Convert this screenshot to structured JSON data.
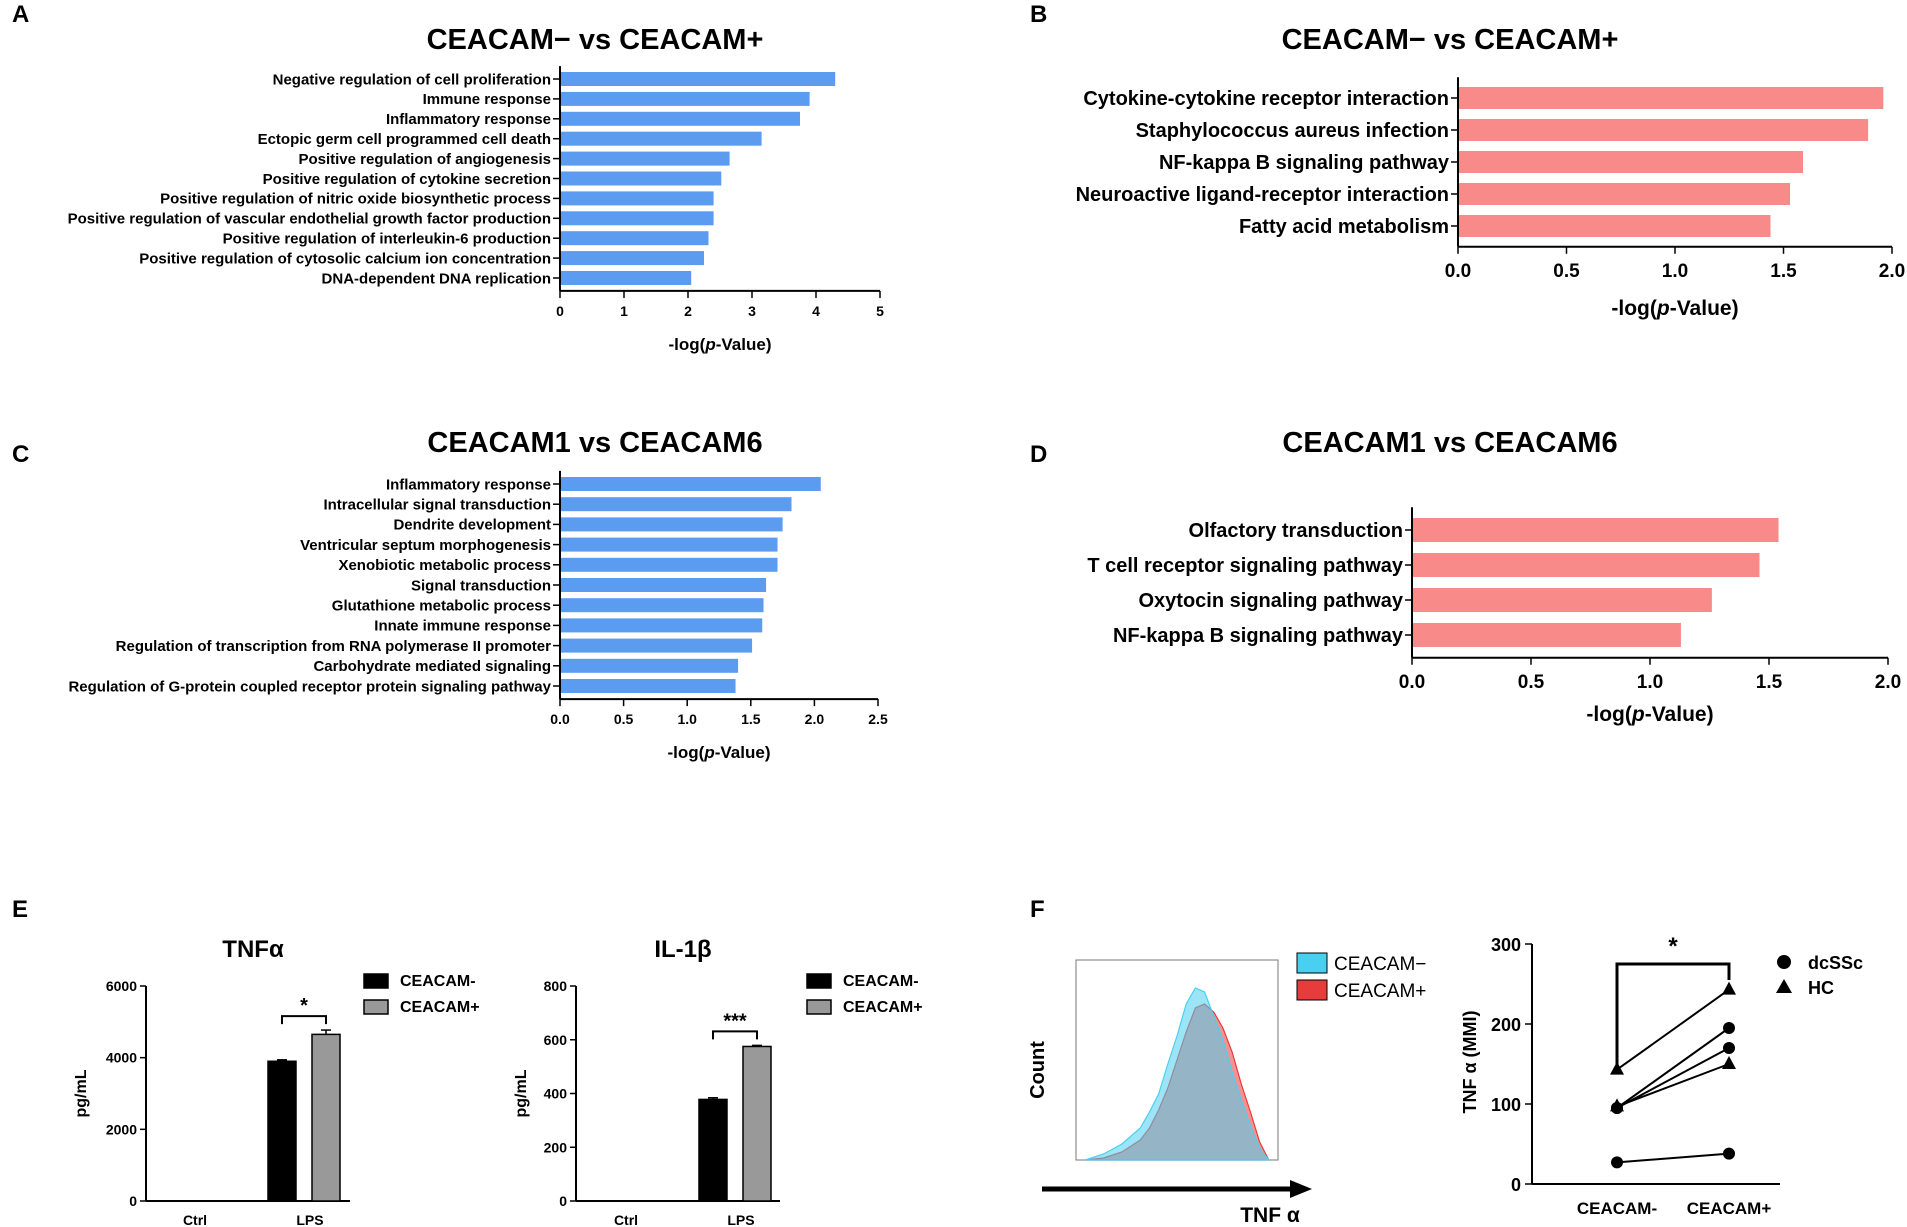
{
  "colors": {
    "blue": "#5B9BF0",
    "salmon": "#F88A8A",
    "black": "#000000",
    "gray": "#999999",
    "cyan": "#49D0F0",
    "red": "#E83B3B",
    "overlap": "#C09AA6"
  },
  "panels": {
    "A": "A",
    "B": "B",
    "C": "C",
    "D": "D",
    "E": "E",
    "F": "F"
  },
  "chart_data": [
    {
      "id": "A",
      "type": "bar",
      "orientation": "horizontal",
      "title": "CEACAM− vs CEACAM+",
      "xlabel_pre": "-log(",
      "xlabel_it": "p",
      "xlabel_post": "-Value)",
      "xlim": [
        0,
        5
      ],
      "xticks": [
        "0",
        "1",
        "2",
        "3",
        "4",
        "5"
      ],
      "categories": [
        "Negative regulation of cell proliferation",
        "Immune response",
        "Inflammatory response",
        "Ectopic germ cell programmed cell death",
        "Positive regulation of angiogenesis",
        "Positive regulation of cytokine secretion",
        "Positive regulation of nitric oxide biosynthetic process",
        "Positive regulation of vascular endothelial growth factor production",
        "Positive regulation of interleukin-6 production",
        "Positive regulation of cytosolic calcium ion concentration",
        "DNA-dependent DNA replication"
      ],
      "values": [
        4.3,
        3.9,
        3.75,
        3.15,
        2.65,
        2.52,
        2.4,
        2.4,
        2.32,
        2.25,
        2.05
      ]
    },
    {
      "id": "B",
      "type": "bar",
      "orientation": "horizontal",
      "title": "CEACAM− vs CEACAM+",
      "xlabel_pre": "-log(",
      "xlabel_it": "p",
      "xlabel_post": "-Value)",
      "xlim": [
        0,
        2
      ],
      "xticks": [
        "0.0",
        "0.5",
        "1.0",
        "1.5",
        "2.0"
      ],
      "categories": [
        "Cytokine-cytokine receptor interaction",
        "Staphylococcus aureus infection",
        "NF-kappa B signaling pathway",
        "Neuroactive ligand-receptor interaction",
        "Fatty acid metabolism"
      ],
      "values": [
        1.96,
        1.89,
        1.59,
        1.53,
        1.44
      ]
    },
    {
      "id": "C",
      "type": "bar",
      "orientation": "horizontal",
      "title": "CEACAM1 vs CEACAM6",
      "xlabel_pre": "-log(",
      "xlabel_it": "p",
      "xlabel_post": "-Value)",
      "xlim": [
        0,
        2.5
      ],
      "xticks": [
        "0.0",
        "0.5",
        "1.0",
        "1.5",
        "2.0",
        "2.5"
      ],
      "categories": [
        "Inflammatory response",
        "Intracellular signal transduction",
        "Dendrite development",
        "Ventricular septum morphogenesis",
        "Xenobiotic metabolic process",
        "Signal transduction",
        "Glutathione metabolic process",
        "Innate immune response",
        "Regulation of transcription from RNA polymerase II promoter",
        "Carbohydrate mediated signaling",
        "Regulation of G-protein coupled receptor protein signaling pathway"
      ],
      "values": [
        2.05,
        1.82,
        1.75,
        1.71,
        1.71,
        1.62,
        1.6,
        1.59,
        1.51,
        1.4,
        1.38
      ]
    },
    {
      "id": "D",
      "type": "bar",
      "orientation": "horizontal",
      "title": "CEACAM1 vs CEACAM6",
      "xlabel_pre": "-log(",
      "xlabel_it": "p",
      "xlabel_post": "-Value)",
      "xlim": [
        0,
        2
      ],
      "xticks": [
        "0.0",
        "0.5",
        "1.0",
        "1.5",
        "2.0"
      ],
      "categories": [
        "Olfactory transduction",
        "T cell receptor signaling pathway",
        "Oxytocin signaling pathway",
        "NF-kappa B signaling pathway"
      ],
      "values": [
        1.54,
        1.46,
        1.26,
        1.13
      ]
    },
    {
      "id": "E1",
      "type": "bar",
      "title": "TNFα",
      "ylabel": "pg/mL",
      "ylim": [
        0,
        6000
      ],
      "yticks": [
        "0",
        "2000",
        "4000",
        "6000"
      ],
      "categories": [
        "Ctrl",
        "LPS"
      ],
      "series": [
        {
          "name": "CEACAM-",
          "values": [
            0,
            3900
          ],
          "errors": [
            0,
            40
          ]
        },
        {
          "name": "CEACAM+",
          "values": [
            0,
            4650
          ],
          "errors": [
            0,
            120
          ]
        }
      ],
      "significance": "*"
    },
    {
      "id": "E2",
      "type": "bar",
      "title": "IL-1β",
      "ylabel": "pg/mL",
      "ylim": [
        0,
        800
      ],
      "yticks": [
        "0",
        "200",
        "400",
        "600",
        "800"
      ],
      "categories": [
        "Ctrl",
        "LPS"
      ],
      "series": [
        {
          "name": "CEACAM-",
          "values": [
            0,
            378
          ],
          "errors": [
            0,
            6
          ]
        },
        {
          "name": "CEACAM+",
          "values": [
            0,
            575
          ],
          "errors": [
            0,
            4
          ]
        }
      ],
      "significance": "***"
    },
    {
      "id": "F1",
      "type": "area",
      "title": "",
      "xlabel": "TNF α",
      "ylabel": "Count",
      "xscale": "log",
      "x": [
        0.6,
        1.0,
        1.4,
        1.8,
        2.0,
        2.2,
        2.4,
        2.6,
        2.8,
        3.0,
        3.2,
        3.4,
        3.6,
        3.8,
        4.0,
        4.2,
        4.4,
        4.6
      ],
      "series": [
        {
          "name": "CEACAM−",
          "values": [
            0,
            3,
            8,
            16,
            24,
            33,
            48,
            62,
            78,
            86,
            84,
            72,
            60,
            44,
            30,
            17,
            6,
            0
          ]
        },
        {
          "name": "CEACAM+",
          "values": [
            0,
            1,
            4,
            10,
            16,
            25,
            36,
            50,
            64,
            76,
            78,
            74,
            66,
            54,
            38,
            24,
            9,
            0
          ]
        }
      ]
    },
    {
      "id": "F2",
      "type": "scatter",
      "title": "",
      "ylabel": "TNF α (MMI)",
      "ylim": [
        0,
        300
      ],
      "yticks": [
        "0",
        "100",
        "200",
        "300"
      ],
      "categories": [
        "CEACAM-",
        "CEACAM+"
      ],
      "series": [
        {
          "name": "dcSSc",
          "marker": "circle",
          "pairs": [
            [
              27,
              38
            ],
            [
              95,
              170
            ],
            [
              95,
              195
            ]
          ]
        },
        {
          "name": "HC",
          "marker": "triangle",
          "pairs": [
            [
              143,
              243
            ],
            [
              97,
              150
            ]
          ]
        }
      ],
      "significance": "*"
    }
  ]
}
